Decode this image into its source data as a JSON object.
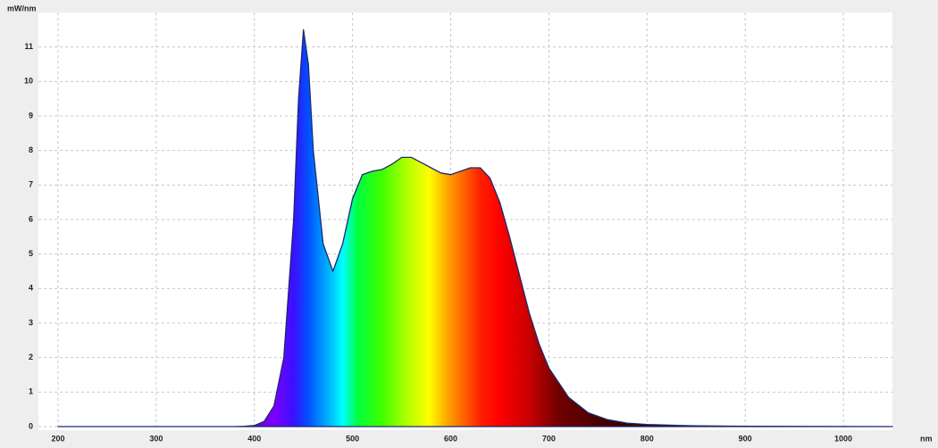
{
  "chart_data": {
    "type": "area",
    "y_label": "mW/nm",
    "x_label": "nm",
    "x": [
      200,
      380,
      390,
      400,
      410,
      420,
      430,
      440,
      445,
      450,
      455,
      460,
      470,
      480,
      490,
      500,
      510,
      520,
      530,
      540,
      550,
      560,
      570,
      580,
      590,
      600,
      610,
      620,
      630,
      640,
      650,
      660,
      670,
      680,
      690,
      700,
      720,
      740,
      760,
      780,
      800,
      850,
      900,
      1050
    ],
    "values": [
      0,
      0,
      0.01,
      0.03,
      0.15,
      0.6,
      2.0,
      6.0,
      9.5,
      11.5,
      10.5,
      8.0,
      5.3,
      4.5,
      5.3,
      6.6,
      7.3,
      7.4,
      7.45,
      7.6,
      7.8,
      7.8,
      7.65,
      7.5,
      7.35,
      7.3,
      7.4,
      7.5,
      7.5,
      7.2,
      6.5,
      5.5,
      4.4,
      3.3,
      2.4,
      1.7,
      0.85,
      0.4,
      0.2,
      0.1,
      0.06,
      0.02,
      0.01,
      0
    ],
    "color": "#1c2a6e",
    "xlim": [
      180,
      1050
    ],
    "xticks": [
      200,
      300,
      400,
      500,
      600,
      700,
      800,
      900,
      1000
    ],
    "ylim": [
      0,
      12
    ],
    "yticks": [
      0,
      1,
      2,
      3,
      4,
      5,
      6,
      7,
      8,
      9,
      10,
      11
    ],
    "grid": true
  }
}
